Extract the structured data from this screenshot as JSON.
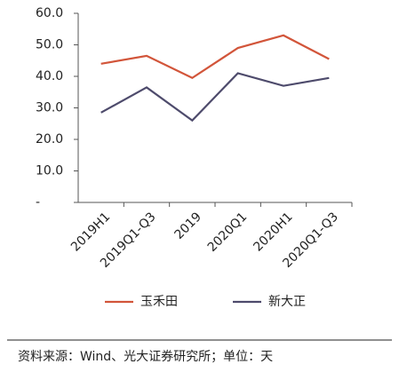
{
  "chart_data": {
    "type": "line",
    "categories": [
      "2019H1",
      "2019Q1-Q3",
      "2019",
      "2020Q1",
      "2020H1",
      "2020Q1-Q3"
    ],
    "series": [
      {
        "name": "玉禾田",
        "color": "#d2553a",
        "values": [
          44,
          46.5,
          39.5,
          49,
          53,
          45.5
        ]
      },
      {
        "name": "新大正",
        "color": "#4e4b6c",
        "values": [
          28.5,
          36.5,
          26,
          41,
          37,
          39.5
        ]
      }
    ],
    "ylim": [
      0,
      60
    ],
    "yticks": [
      {
        "value": 0,
        "label": "-"
      },
      {
        "value": 10,
        "label": "10.0"
      },
      {
        "value": 20,
        "label": "20.0"
      },
      {
        "value": 30,
        "label": "30.0"
      },
      {
        "value": 40,
        "label": "40.0"
      },
      {
        "value": 50,
        "label": "50.0"
      },
      {
        "value": 60,
        "label": "60.0"
      }
    ],
    "source": "资料来源：Wind、光大证券研究所；单位：天"
  }
}
